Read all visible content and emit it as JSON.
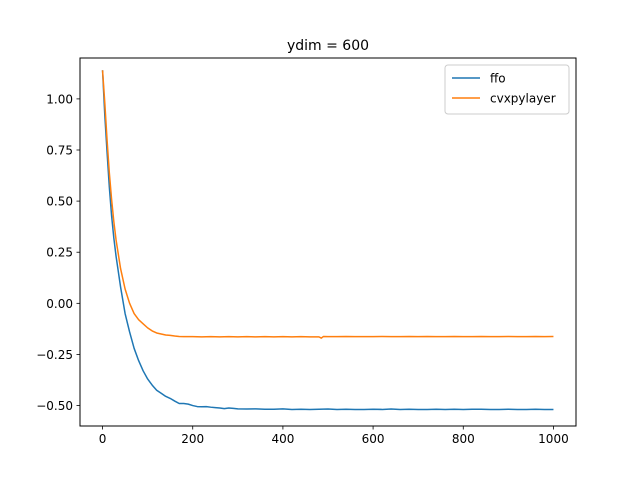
{
  "chart_data": {
    "type": "line",
    "title": "ydim = 600",
    "xlabel": "",
    "ylabel": "",
    "xlim": [
      -50,
      1050
    ],
    "ylim": [
      -0.6,
      1.2
    ],
    "x_ticks": [
      0,
      200,
      400,
      600,
      800,
      1000
    ],
    "x_tick_labels": [
      "0",
      "200",
      "400",
      "600",
      "800",
      "1000"
    ],
    "y_ticks": [
      -0.5,
      -0.25,
      0.0,
      0.25,
      0.5,
      0.75,
      1.0
    ],
    "y_tick_labels": [
      "−0.50",
      "−0.25",
      "0.00",
      "0.25",
      "0.50",
      "0.75",
      "1.00"
    ],
    "grid": false,
    "legend_position": "upper right",
    "series": [
      {
        "name": "ffo",
        "color": "#1f77b4",
        "x": [
          0,
          5,
          10,
          15,
          20,
          25,
          30,
          40,
          50,
          60,
          70,
          80,
          90,
          100,
          110,
          120,
          130,
          140,
          150,
          160,
          170,
          180,
          190,
          200,
          210,
          220,
          230,
          240,
          250,
          260,
          270,
          280,
          290,
          300,
          320,
          340,
          360,
          380,
          400,
          420,
          440,
          460,
          480,
          500,
          520,
          540,
          560,
          580,
          600,
          620,
          640,
          660,
          680,
          700,
          720,
          740,
          760,
          780,
          800,
          820,
          840,
          860,
          880,
          900,
          920,
          940,
          960,
          980,
          1000
        ],
        "y": [
          1.14,
          0.92,
          0.74,
          0.57,
          0.43,
          0.32,
          0.23,
          0.08,
          -0.05,
          -0.14,
          -0.22,
          -0.28,
          -0.33,
          -0.37,
          -0.4,
          -0.425,
          -0.44,
          -0.455,
          -0.465,
          -0.478,
          -0.49,
          -0.49,
          -0.493,
          -0.5,
          -0.505,
          -0.506,
          -0.505,
          -0.508,
          -0.51,
          -0.512,
          -0.515,
          -0.512,
          -0.514,
          -0.516,
          -0.517,
          -0.516,
          -0.518,
          -0.518,
          -0.516,
          -0.519,
          -0.518,
          -0.519,
          -0.518,
          -0.517,
          -0.519,
          -0.518,
          -0.519,
          -0.519,
          -0.518,
          -0.519,
          -0.517,
          -0.519,
          -0.518,
          -0.519,
          -0.519,
          -0.518,
          -0.519,
          -0.518,
          -0.519,
          -0.518,
          -0.518,
          -0.519,
          -0.519,
          -0.518,
          -0.519,
          -0.519,
          -0.518,
          -0.519,
          -0.519
        ]
      },
      {
        "name": "cvxpylayer",
        "color": "#ff7f0e",
        "x": [
          0,
          5,
          10,
          15,
          20,
          25,
          30,
          40,
          50,
          60,
          70,
          80,
          90,
          100,
          110,
          120,
          130,
          140,
          150,
          160,
          170,
          180,
          200,
          220,
          240,
          260,
          280,
          300,
          320,
          340,
          360,
          380,
          400,
          420,
          440,
          460,
          480,
          485,
          490,
          500,
          520,
          540,
          560,
          580,
          600,
          620,
          640,
          660,
          680,
          700,
          720,
          740,
          760,
          780,
          800,
          820,
          840,
          860,
          880,
          900,
          920,
          940,
          960,
          980,
          1000
        ],
        "y": [
          1.14,
          0.98,
          0.8,
          0.64,
          0.51,
          0.4,
          0.31,
          0.17,
          0.07,
          -0.0,
          -0.05,
          -0.08,
          -0.1,
          -0.12,
          -0.135,
          -0.145,
          -0.15,
          -0.155,
          -0.157,
          -0.16,
          -0.162,
          -0.163,
          -0.163,
          -0.164,
          -0.163,
          -0.164,
          -0.163,
          -0.164,
          -0.163,
          -0.164,
          -0.163,
          -0.164,
          -0.163,
          -0.164,
          -0.163,
          -0.164,
          -0.164,
          -0.17,
          -0.162,
          -0.163,
          -0.163,
          -0.162,
          -0.163,
          -0.163,
          -0.163,
          -0.162,
          -0.163,
          -0.163,
          -0.162,
          -0.163,
          -0.162,
          -0.163,
          -0.163,
          -0.162,
          -0.163,
          -0.163,
          -0.162,
          -0.163,
          -0.163,
          -0.162,
          -0.163,
          -0.163,
          -0.162,
          -0.163,
          -0.162
        ]
      }
    ]
  }
}
